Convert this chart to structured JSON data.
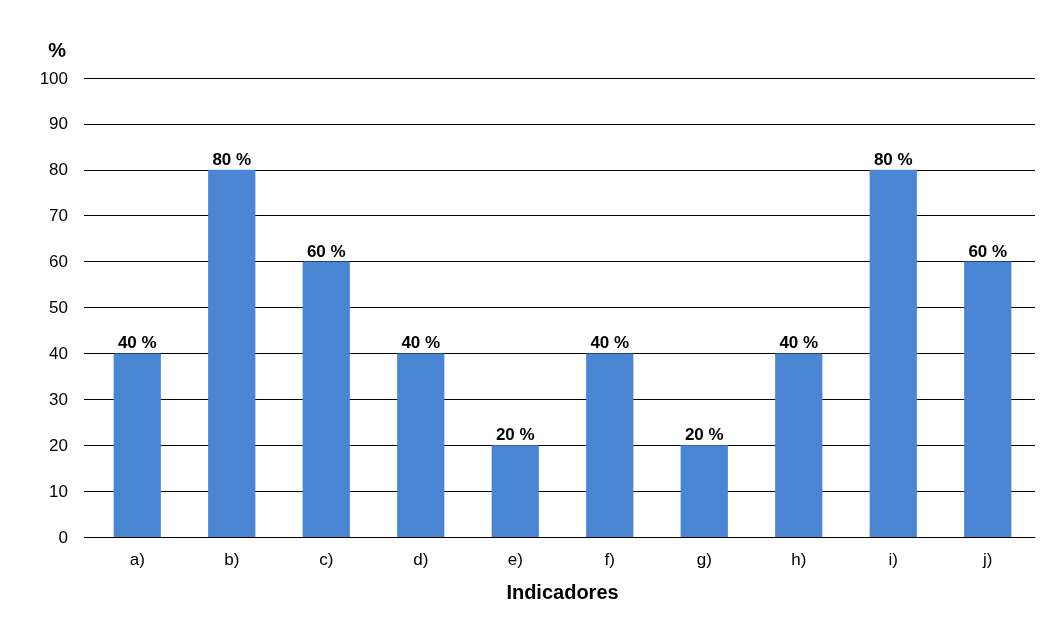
{
  "chart_data": {
    "type": "bar",
    "ylabel": "%",
    "xlabel": "Indicadores",
    "categories": [
      "a)",
      "b)",
      "c)",
      "d)",
      "e)",
      "f)",
      "g)",
      "h)",
      "i)",
      "j)"
    ],
    "values": [
      40,
      80,
      60,
      40,
      20,
      40,
      20,
      40,
      80,
      60
    ],
    "value_labels": [
      "40 %",
      "80 %",
      "60 %",
      "40 %",
      "20 %",
      "40 %",
      "20 %",
      "40 %",
      "80 %",
      "60 %"
    ],
    "color": "#4a86d4",
    "ylim": [
      0,
      100
    ],
    "yticks": [
      0,
      10,
      20,
      30,
      40,
      50,
      60,
      70,
      80,
      90,
      100
    ],
    "grid": "y"
  }
}
